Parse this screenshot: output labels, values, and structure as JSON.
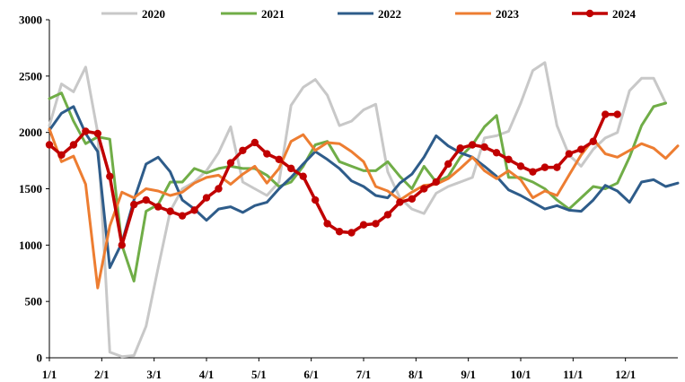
{
  "chart_data": {
    "type": "line",
    "title": "",
    "xlabel": "",
    "ylabel": "",
    "ylim": [
      0,
      3000
    ],
    "yticks": [
      "0",
      "500",
      "1000",
      "1500",
      "2000",
      "2500",
      "3000"
    ],
    "xticks": [
      "1/1",
      "2/1",
      "3/1",
      "4/1",
      "5/1",
      "6/1",
      "7/1",
      "8/1",
      "9/1",
      "10/1",
      "11/1",
      "12/1"
    ],
    "xlim_weeks": [
      1,
      53
    ],
    "grid": false,
    "legend_position": "top",
    "series": [
      {
        "name": "2020",
        "color": "#c8c8c8",
        "markers": false,
        "x": [
          1,
          2,
          3,
          4,
          5,
          6,
          7,
          8,
          9,
          10,
          11,
          12,
          13,
          14,
          15,
          16,
          17,
          18,
          19,
          20,
          21,
          22,
          23,
          24,
          25,
          26,
          27,
          28,
          29,
          30,
          31,
          32,
          33,
          34,
          35,
          36,
          37,
          38,
          39,
          40,
          41,
          42,
          43,
          44,
          45,
          46,
          47,
          48,
          49,
          50,
          51,
          52
        ],
        "values": [
          2060,
          2430,
          2360,
          2580,
          2000,
          50,
          10,
          20,
          280,
          800,
          1300,
          1500,
          1560,
          1660,
          1820,
          2050,
          1560,
          1500,
          1440,
          1560,
          2240,
          2400,
          2470,
          2330,
          2060,
          2100,
          2200,
          2250,
          1650,
          1420,
          1320,
          1280,
          1460,
          1520,
          1560,
          1600,
          1950,
          1970,
          2010,
          2260,
          2550,
          2620,
          2060,
          1800,
          1700,
          1850,
          1950,
          2000,
          2370,
          2480,
          2480,
          2260
        ]
      },
      {
        "name": "2021",
        "color": "#70ad47",
        "markers": false,
        "x": [
          1,
          2,
          3,
          4,
          5,
          6,
          7,
          8,
          9,
          10,
          11,
          12,
          13,
          14,
          15,
          16,
          17,
          18,
          19,
          20,
          21,
          22,
          23,
          24,
          25,
          26,
          27,
          28,
          29,
          30,
          31,
          32,
          33,
          34,
          35,
          36,
          37,
          38,
          39,
          40,
          41,
          42,
          43,
          44,
          45,
          46,
          47,
          48,
          49,
          50,
          51,
          52
        ],
        "values": [
          2300,
          2350,
          2100,
          1900,
          1960,
          1940,
          1000,
          680,
          1300,
          1360,
          1560,
          1560,
          1680,
          1640,
          1680,
          1700,
          1680,
          1680,
          1620,
          1520,
          1560,
          1700,
          1890,
          1920,
          1740,
          1700,
          1660,
          1660,
          1740,
          1610,
          1500,
          1700,
          1560,
          1610,
          1780,
          1890,
          2050,
          2150,
          1600,
          1600,
          1560,
          1500,
          1400,
          1320,
          1420,
          1520,
          1500,
          1550,
          1780,
          2060,
          2230,
          2260
        ]
      },
      {
        "name": "2022",
        "color": "#2e5c8a",
        "markers": false,
        "x": [
          1,
          2,
          3,
          4,
          5,
          6,
          7,
          8,
          9,
          10,
          11,
          12,
          13,
          14,
          15,
          16,
          17,
          18,
          19,
          20,
          21,
          22,
          23,
          24,
          25,
          26,
          27,
          28,
          29,
          30,
          31,
          32,
          33,
          34,
          35,
          36,
          37,
          38,
          39,
          40,
          41,
          42,
          43,
          44,
          45,
          46,
          47,
          48,
          49,
          50,
          51,
          52,
          53
        ],
        "values": [
          2020,
          2170,
          2230,
          1990,
          1830,
          800,
          1020,
          1400,
          1720,
          1780,
          1650,
          1400,
          1320,
          1220,
          1320,
          1340,
          1290,
          1350,
          1380,
          1500,
          1600,
          1720,
          1830,
          1760,
          1680,
          1570,
          1520,
          1440,
          1420,
          1550,
          1630,
          1780,
          1970,
          1880,
          1820,
          1780,
          1700,
          1610,
          1490,
          1440,
          1380,
          1320,
          1350,
          1310,
          1300,
          1400,
          1530,
          1480,
          1380,
          1560,
          1580,
          1520,
          1550
        ]
      },
      {
        "name": "2023",
        "color": "#ed7d31",
        "markers": false,
        "x": [
          1,
          2,
          3,
          4,
          5,
          6,
          7,
          8,
          9,
          10,
          11,
          12,
          13,
          14,
          15,
          16,
          17,
          18,
          19,
          20,
          21,
          22,
          23,
          24,
          25,
          26,
          27,
          28,
          29,
          30,
          31,
          32,
          33,
          34,
          35,
          36,
          37,
          38,
          39,
          40,
          41,
          42,
          43,
          44,
          45,
          46,
          47,
          48,
          49,
          50,
          51,
          52,
          53
        ],
        "values": [
          2030,
          1740,
          1790,
          1540,
          620,
          1170,
          1470,
          1420,
          1500,
          1480,
          1440,
          1470,
          1550,
          1600,
          1620,
          1540,
          1630,
          1700,
          1550,
          1680,
          1920,
          1980,
          1840,
          1910,
          1900,
          1830,
          1740,
          1520,
          1480,
          1400,
          1470,
          1530,
          1540,
          1590,
          1680,
          1780,
          1660,
          1590,
          1660,
          1580,
          1420,
          1480,
          1440,
          1620,
          1800,
          1940,
          1810,
          1780,
          1840,
          1900,
          1860,
          1770,
          1880
        ]
      },
      {
        "name": "2024",
        "color": "#c00000",
        "markers": true,
        "x": [
          1,
          2,
          3,
          4,
          5,
          6,
          7,
          8,
          9,
          10,
          11,
          12,
          13,
          14,
          15,
          16,
          17,
          18,
          19,
          20,
          21,
          22,
          23,
          24,
          25,
          26,
          27,
          28,
          29,
          30,
          31,
          32,
          33,
          34,
          35,
          36,
          37,
          38,
          39,
          40,
          41,
          42,
          43,
          44,
          45,
          46,
          47,
          48
        ],
        "values": [
          1890,
          1800,
          1890,
          2010,
          1990,
          1610,
          1000,
          1360,
          1400,
          1340,
          1300,
          1260,
          1310,
          1420,
          1500,
          1730,
          1840,
          1910,
          1810,
          1760,
          1680,
          1610,
          1400,
          1190,
          1120,
          1110,
          1180,
          1190,
          1270,
          1380,
          1410,
          1500,
          1560,
          1720,
          1860,
          1890,
          1870,
          1820,
          1760,
          1700,
          1650,
          1690,
          1690,
          1810,
          1850,
          1920,
          2160,
          2160
        ]
      }
    ]
  }
}
